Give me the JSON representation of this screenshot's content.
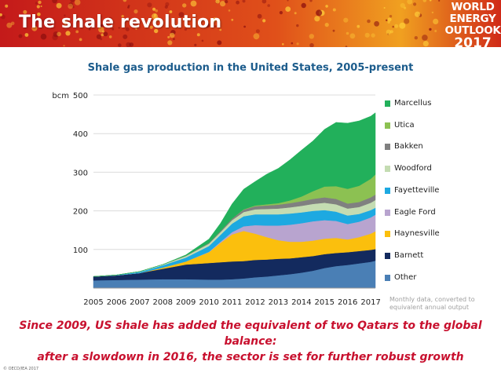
{
  "header": {
    "title": "The shale revolution",
    "logo": {
      "line1": "WORLD",
      "line2": "ENERGY",
      "line3": "OUTLOOK",
      "line4": "2017"
    }
  },
  "colors": {
    "banner_red": "#c41a1a",
    "banner_orange": "#f0a020",
    "title_blue": "#1c5c8c",
    "headline_red": "#c8102e"
  },
  "chart_data": {
    "type": "area",
    "stacked": true,
    "title": "Shale gas production in the United States, 2005-present",
    "ylabel": "bcm",
    "ylim": [
      0,
      500
    ],
    "yticks": [
      100,
      200,
      300,
      400,
      500
    ],
    "xlim": [
      2005,
      2017.2
    ],
    "xticks": [
      "2005",
      "2006",
      "2007",
      "2008",
      "2009",
      "2010",
      "2011",
      "2012",
      "2013",
      "2014",
      "2015",
      "2016",
      "2017"
    ],
    "grid": true,
    "legend_position": "right",
    "note": "Monthly data, converted to equivalent annual output",
    "x": [
      2005,
      2006,
      2007,
      2008,
      2009,
      2010,
      2010.5,
      2011,
      2011.5,
      2012,
      2012.5,
      2013,
      2013.5,
      2014,
      2014.5,
      2015,
      2015.5,
      2016,
      2016.5,
      2017,
      2017.2
    ],
    "series": [
      {
        "name": "Other",
        "color": "#4a7fb5",
        "values": [
          20,
          21,
          22,
          23,
          23,
          22,
          22,
          23,
          25,
          28,
          30,
          33,
          36,
          40,
          45,
          52,
          57,
          60,
          64,
          68,
          71
        ]
      },
      {
        "name": "Barnett",
        "color": "#132a5e",
        "values": [
          10,
          12,
          17,
          27,
          38,
          43,
          45,
          46,
          45,
          45,
          44,
          43,
          41,
          40,
          38,
          36,
          34,
          33,
          32,
          31,
          30
        ]
      },
      {
        "name": "Haynesville",
        "color": "#fbbf0d",
        "values": [
          0,
          0,
          0,
          3,
          8,
          28,
          50,
          70,
          78,
          68,
          58,
          48,
          43,
          40,
          40,
          40,
          39,
          33,
          36,
          42,
          46
        ]
      },
      {
        "name": "Eagle Ford",
        "color": "#b8a4cf",
        "values": [
          0,
          0,
          0,
          0,
          0,
          1,
          3,
          6,
          12,
          22,
          30,
          38,
          44,
          48,
          50,
          48,
          44,
          40,
          40,
          42,
          43
        ]
      },
      {
        "name": "Fayetteville",
        "color": "#1da9e1",
        "values": [
          0,
          1,
          3,
          6,
          10,
          15,
          18,
          22,
          26,
          28,
          29,
          29,
          29,
          28,
          27,
          26,
          24,
          22,
          20,
          19,
          18
        ]
      },
      {
        "name": "Woodford",
        "color": "#c4dcb2",
        "values": [
          0,
          0,
          1,
          2,
          4,
          6,
          7,
          9,
          11,
          13,
          14,
          15,
          16,
          17,
          18,
          19,
          19,
          18,
          18,
          19,
          20
        ]
      },
      {
        "name": "Bakken",
        "color": "#808080",
        "values": [
          0,
          0,
          0,
          0,
          1,
          2,
          3,
          4,
          6,
          8,
          9,
          10,
          11,
          12,
          13,
          14,
          14,
          13,
          13,
          14,
          14
        ]
      },
      {
        "name": "Utica",
        "color": "#8cc152",
        "values": [
          0,
          0,
          0,
          0,
          0,
          0,
          0,
          0,
          1,
          2,
          3,
          4,
          7,
          12,
          20,
          28,
          33,
          38,
          42,
          48,
          52
        ]
      },
      {
        "name": "Marcellus",
        "color": "#22b05b",
        "values": [
          0,
          0,
          0,
          0,
          2,
          10,
          20,
          38,
          52,
          62,
          78,
          90,
          105,
          120,
          130,
          148,
          165,
          170,
          168,
          162,
          160
        ]
      }
    ]
  },
  "headline": {
    "line1": "Since 2009, US shale has added the equivalent of two Qatars to the global balance:",
    "line2": "after a slowdown in 2016, the sector is set for further robust growth"
  },
  "footer": {
    "copyright": "© OECD/IEA 2017"
  }
}
